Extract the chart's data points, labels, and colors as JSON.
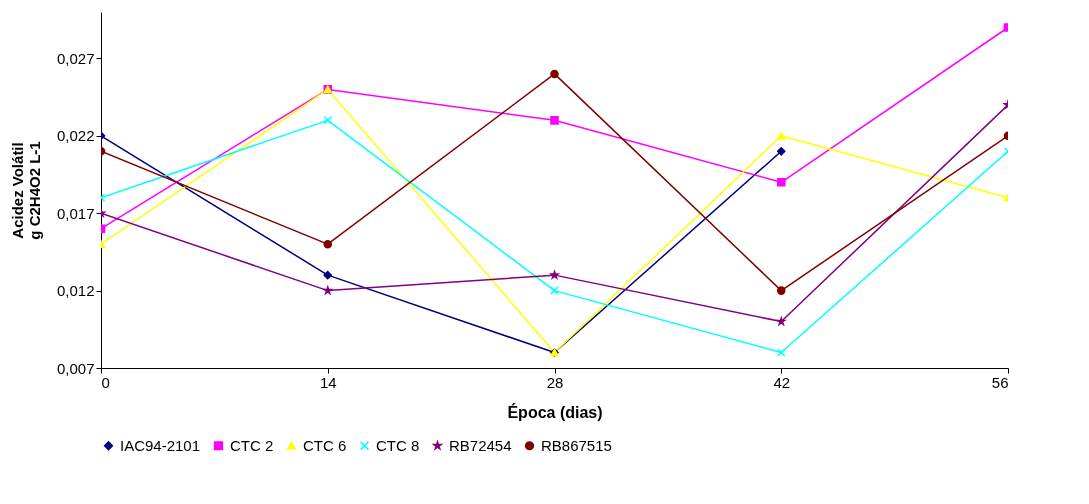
{
  "chart_data": {
    "type": "line",
    "xlabel": "Época (dias)",
    "ylabel": "Acidez Volátil\ng C2H4O2 L-1",
    "x": [
      0,
      14,
      28,
      42,
      56
    ],
    "xlim": [
      0,
      56
    ],
    "xticks": [
      0,
      14,
      28,
      42,
      56
    ],
    "ylim": [
      0.007,
      0.03
    ],
    "yticks": [
      {
        "value": 0.007,
        "label": "0,007"
      },
      {
        "value": 0.012,
        "label": "0,012"
      },
      {
        "value": 0.017,
        "label": "0,017"
      },
      {
        "value": 0.022,
        "label": "0,022"
      },
      {
        "value": 0.027,
        "label": "0,027"
      }
    ],
    "grid": false,
    "legend": "bottom",
    "series": [
      {
        "name": "IAC94-2101",
        "color": "#000080",
        "marker": "diamond",
        "values": [
          0.022,
          0.013,
          0.008,
          0.021,
          null
        ]
      },
      {
        "name": "CTC 2",
        "color": "#ff00ff",
        "marker": "square",
        "values": [
          0.016,
          0.025,
          0.023,
          0.019,
          0.029
        ]
      },
      {
        "name": "CTC 6",
        "color": "#ffff00",
        "marker": "triangle",
        "values": [
          0.015,
          0.025,
          0.008,
          0.022,
          0.018
        ]
      },
      {
        "name": "CTC 8",
        "color": "#00ffff",
        "marker": "cross",
        "values": [
          0.018,
          0.023,
          0.012,
          0.008,
          0.021
        ]
      },
      {
        "name": "RB72454",
        "color": "#800080",
        "marker": "star",
        "values": [
          0.017,
          0.012,
          0.013,
          0.01,
          0.024
        ]
      },
      {
        "name": "RB867515",
        "color": "#800000",
        "marker": "circle",
        "values": [
          0.021,
          0.015,
          0.026,
          0.012,
          0.022
        ]
      }
    ]
  }
}
